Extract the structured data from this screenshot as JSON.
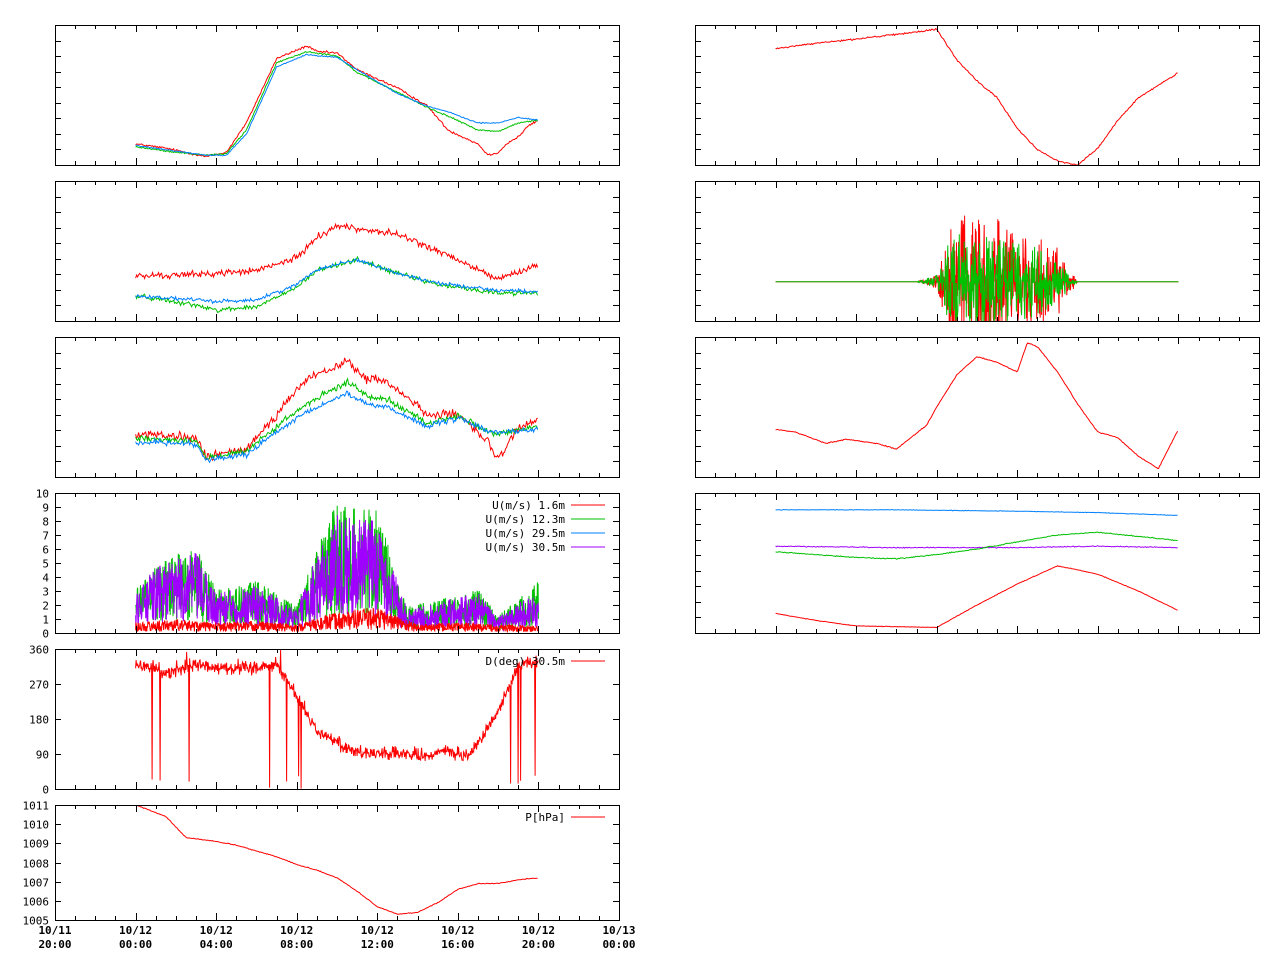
{
  "colors": {
    "red": "#ff0000",
    "green": "#00c000",
    "blue": "#0080ff",
    "purple": "#a000ff",
    "axis": "#000000",
    "background": "#ffffff"
  },
  "time_axis": {
    "start": "10/11 20:00",
    "end": "10/13 00:00",
    "major_every_hours": 4,
    "minor_every_hours": 1,
    "tick_labels": [
      {
        "date": "10/11",
        "time": "20:00"
      },
      {
        "date": "10/12",
        "time": "00:00"
      },
      {
        "date": "10/12",
        "time": "04:00"
      },
      {
        "date": "10/12",
        "time": "08:00"
      },
      {
        "date": "10/12",
        "time": "12:00"
      },
      {
        "date": "10/12",
        "time": "16:00"
      },
      {
        "date": "10/12",
        "time": "20:00"
      },
      {
        "date": "10/13",
        "time": "00:00"
      }
    ]
  },
  "chart_data": [
    {
      "id": "left-1",
      "type": "line",
      "x_range_hours": [
        0,
        28
      ],
      "ylim": [
        0,
        10
      ],
      "grid": false,
      "y_ticks": [],
      "legend": [],
      "series": [
        {
          "color": "red",
          "noise": 0.12,
          "x": [
            4,
            5.5,
            7.5,
            8.5,
            9.5,
            11,
            12.5,
            13,
            14,
            15,
            17,
            18.5,
            19.5,
            21,
            21.5,
            22,
            22.5,
            23,
            23.5,
            24
          ],
          "y": [
            1.5,
            1.2,
            0.6,
            0.9,
            3,
            7.6,
            8.5,
            8.1,
            8,
            6.8,
            5.5,
            4.2,
            2.5,
            1.5,
            0.7,
            0.9,
            1.6,
            2,
            2.8,
            3.2
          ]
        },
        {
          "color": "green",
          "noise": 0.08,
          "x": [
            4,
            5.5,
            7.5,
            8.5,
            9.5,
            11,
            12.5,
            13,
            14,
            15,
            17,
            18.5,
            19.5,
            21,
            22,
            23,
            24
          ],
          "y": [
            1.3,
            1,
            0.7,
            0.8,
            2.5,
            7.3,
            8.1,
            8,
            7.8,
            6.6,
            5.2,
            4.1,
            3.5,
            2.5,
            2.4,
            3,
            3.2
          ]
        },
        {
          "color": "blue",
          "noise": 0.06,
          "x": [
            4,
            5.5,
            7.5,
            8.5,
            9.5,
            11,
            12.5,
            13,
            14,
            15,
            17,
            18.5,
            19.5,
            21,
            22,
            23,
            24
          ],
          "y": [
            1.4,
            1.1,
            0.7,
            0.7,
            2.2,
            7,
            7.9,
            7.8,
            7.7,
            6.8,
            5.1,
            4.2,
            3.8,
            3,
            3,
            3.4,
            3.2
          ]
        }
      ]
    },
    {
      "id": "left-2",
      "type": "line",
      "x_range_hours": [
        0,
        28
      ],
      "ylim": [
        0,
        10
      ],
      "grid": false,
      "y_ticks": [],
      "legend": [],
      "series": [
        {
          "color": "red",
          "noise": 0.35,
          "x": [
            4,
            6.5,
            8,
            10,
            12,
            13,
            14,
            15,
            17,
            19,
            20.5,
            22,
            23,
            24
          ],
          "y": [
            3.2,
            3.3,
            3.4,
            3.6,
            4.5,
            6,
            6.8,
            6.6,
            6.2,
            5,
            4,
            3,
            3.5,
            4
          ]
        },
        {
          "color": "green",
          "noise": 0.25,
          "x": [
            4,
            6,
            8,
            10,
            12,
            13,
            15,
            17,
            19,
            22,
            24
          ],
          "y": [
            1.8,
            1.4,
            0.8,
            1,
            2.4,
            3.6,
            4.4,
            3.4,
            2.6,
            2,
            2
          ]
        },
        {
          "color": "blue",
          "noise": 0.2,
          "x": [
            4,
            6,
            8,
            10,
            12,
            13,
            15,
            17,
            19,
            22,
            24
          ],
          "y": [
            1.8,
            1.6,
            1.4,
            1.5,
            2.6,
            3.7,
            4.4,
            3.4,
            2.7,
            2.2,
            2.1
          ]
        }
      ]
    },
    {
      "id": "left-3",
      "type": "line",
      "x_range_hours": [
        0,
        28
      ],
      "ylim": [
        0,
        10
      ],
      "grid": false,
      "y_ticks": [],
      "legend": [],
      "series": [
        {
          "color": "red",
          "noise": 0.5,
          "x": [
            4,
            7,
            7.5,
            9.5,
            11,
            12.5,
            14.5,
            15.5,
            16.5,
            18.5,
            20,
            21.5,
            22,
            23,
            24
          ],
          "y": [
            3,
            2.8,
            1.4,
            2,
            4.5,
            7,
            8.2,
            7,
            6.8,
            4.5,
            4.4,
            2.5,
            1.2,
            3.5,
            4
          ]
        },
        {
          "color": "green",
          "noise": 0.35,
          "x": [
            4,
            7,
            7.5,
            9.5,
            11,
            12.5,
            14.5,
            15.5,
            16.5,
            18.5,
            20,
            21.5,
            22,
            23,
            24
          ],
          "y": [
            2.8,
            2.6,
            1.4,
            1.8,
            3.6,
            5.2,
            6.8,
            5.8,
            5.6,
            3.8,
            4.4,
            3.2,
            3,
            3.4,
            3.6
          ]
        },
        {
          "color": "blue",
          "noise": 0.3,
          "x": [
            4,
            7,
            7.5,
            9.5,
            11,
            12.5,
            14.5,
            15.5,
            16.5,
            18.5,
            20,
            21.5,
            22,
            24
          ],
          "y": [
            2.5,
            2.4,
            1.2,
            1.6,
            3.2,
            4.6,
            6,
            5.2,
            5,
            3.6,
            4.2,
            3.3,
            3.2,
            3.4
          ]
        }
      ]
    },
    {
      "id": "left-4",
      "type": "line",
      "x_range_hours": [
        0,
        28
      ],
      "ylim": [
        0,
        10
      ],
      "grid": false,
      "y_ticks": [
        "0",
        "1",
        "2",
        "3",
        "4",
        "5",
        "6",
        "7",
        "8",
        "9",
        "10"
      ],
      "legend": [
        {
          "label": "U(m/s)  1.6m",
          "color": "red"
        },
        {
          "label": "U(m/s) 12.3m",
          "color": "green"
        },
        {
          "label": "U(m/s) 29.5m",
          "color": "blue"
        },
        {
          "label": "U(m/s) 30.5m",
          "color": "purple"
        }
      ],
      "series": [
        {
          "color": "green",
          "style": "spiky",
          "x": [
            4,
            5,
            7,
            8,
            10,
            12,
            13,
            14,
            16,
            17.5,
            19,
            21,
            22,
            24
          ],
          "y": [
            2.5,
            4,
            5,
            2.5,
            3,
            1.5,
            5,
            7.5,
            7,
            1.5,
            2,
            2.5,
            1,
            3
          ]
        },
        {
          "color": "purple",
          "style": "spiky",
          "x": [
            4,
            5,
            7,
            8,
            10,
            12,
            13,
            14,
            16,
            17.5,
            19,
            21,
            22,
            24
          ],
          "y": [
            2.2,
            3.8,
            4.6,
            2.3,
            2.8,
            1.3,
            4.6,
            6.8,
            6.5,
            1.3,
            1.8,
            2.3,
            0.9,
            2.5
          ]
        },
        {
          "color": "red",
          "style": "spiky",
          "x": [
            4,
            6,
            8,
            10,
            12,
            14,
            16,
            18,
            20,
            24
          ],
          "y": [
            0.6,
            0.8,
            0.6,
            0.7,
            0.5,
            1.2,
            1.5,
            0.5,
            0.6,
            0.4
          ]
        }
      ]
    },
    {
      "id": "left-5",
      "type": "line",
      "x_range_hours": [
        0,
        28
      ],
      "ylim": [
        0,
        360
      ],
      "grid": false,
      "y_ticks": [
        "0",
        "90",
        "180",
        "270",
        "360"
      ],
      "legend": [
        {
          "label": "D(deg)  30.5m",
          "color": "red"
        }
      ],
      "series": [
        {
          "color": "red",
          "style": "direction",
          "x": [
            4,
            5.5,
            7,
            9,
            11,
            12,
            13,
            14,
            15,
            17,
            18.5,
            19.5,
            20.5,
            22,
            23,
            24
          ],
          "y": [
            320,
            300,
            320,
            310,
            320,
            240,
            150,
            120,
            95,
            90,
            85,
            100,
            80,
            200,
            320,
            330
          ]
        }
      ]
    },
    {
      "id": "left-6",
      "type": "line",
      "x_range_hours": [
        0,
        28
      ],
      "ylim": [
        1005,
        1011
      ],
      "grid": false,
      "y_ticks": [
        "1005",
        "1006",
        "1007",
        "1008",
        "1009",
        "1010",
        "1011"
      ],
      "legend": [
        {
          "label": "P[hPa]",
          "color": "red"
        }
      ],
      "series": [
        {
          "color": "red",
          "noise": 0.05,
          "x": [
            4,
            5.5,
            6.5,
            8,
            9,
            10,
            11,
            12,
            13,
            14,
            15,
            16,
            17,
            18,
            19,
            20,
            21,
            22,
            23,
            24
          ],
          "y": [
            1011,
            1010.4,
            1009.3,
            1009.1,
            1008.9,
            1008.6,
            1008.3,
            1007.9,
            1007.6,
            1007.2,
            1006.5,
            1005.7,
            1005.3,
            1005.4,
            1005.9,
            1006.6,
            1006.9,
            1006.9,
            1007.1,
            1007.2
          ]
        }
      ]
    },
    {
      "id": "right-1",
      "type": "line",
      "x_range_hours": [
        0,
        28
      ],
      "ylim": [
        0,
        10
      ],
      "grid": false,
      "y_ticks": [],
      "legend": [],
      "series": [
        {
          "color": "red",
          "noise": 0.08,
          "x": [
            4,
            6,
            8,
            11,
            12,
            13,
            14,
            15,
            16,
            17,
            18,
            19,
            20,
            21,
            22,
            24
          ],
          "y": [
            8.3,
            8.7,
            9,
            9.5,
            9.7,
            7.5,
            6,
            4.8,
            2.6,
            1.1,
            0.3,
            0,
            1.2,
            3.2,
            4.8,
            6.6
          ]
        }
      ]
    },
    {
      "id": "right-2",
      "type": "line",
      "x_range_hours": [
        0,
        28
      ],
      "ylim": [
        0,
        10
      ],
      "grid": false,
      "y_ticks": [],
      "legend": [],
      "series": [
        {
          "color": "red",
          "style": "spiky",
          "base": 2.8,
          "x": [
            4,
            11,
            12,
            12.5,
            13,
            14,
            15,
            16,
            17,
            18,
            19,
            20,
            24
          ],
          "y": [
            0,
            0,
            0.5,
            3,
            5,
            4.5,
            4.6,
            3.5,
            3.2,
            2.5,
            0,
            0,
            0
          ]
        },
        {
          "color": "green",
          "style": "spiky",
          "base": 2.8,
          "x": [
            4,
            11,
            12,
            12.5,
            13,
            14,
            15,
            16,
            17,
            18,
            19,
            20,
            24
          ],
          "y": [
            0,
            0,
            0.5,
            2.5,
            3.8,
            3.5,
            3,
            2.8,
            2.5,
            1.5,
            0,
            0,
            0
          ]
        }
      ]
    },
    {
      "id": "right-3",
      "type": "line",
      "x_range_hours": [
        0,
        28
      ],
      "ylim": [
        0,
        10
      ],
      "grid": false,
      "y_ticks": [],
      "legend": [],
      "series": [
        {
          "color": "red",
          "noise": 0.05,
          "x": [
            4,
            5,
            6.5,
            7.5,
            9,
            10,
            11.5,
            12,
            13,
            14,
            15,
            16,
            16.5,
            17,
            18,
            19,
            20,
            21,
            22,
            23,
            24
          ],
          "y": [
            3.4,
            3.2,
            2.4,
            2.7,
            2.4,
            2,
            3.7,
            5,
            7.3,
            8.6,
            8.2,
            7.5,
            9.6,
            9.3,
            7.5,
            5.2,
            3.2,
            2.8,
            1.5,
            0.6,
            3.4
          ]
        }
      ]
    },
    {
      "id": "right-4",
      "type": "line",
      "x_range_hours": [
        0,
        28
      ],
      "ylim": [
        0,
        10
      ],
      "grid": false,
      "y_ticks": [],
      "legend": [],
      "series": [
        {
          "color": "blue",
          "noise": 0.03,
          "x": [
            4,
            10,
            16,
            20,
            24
          ],
          "y": [
            8.8,
            8.8,
            8.7,
            8.6,
            8.4
          ]
        },
        {
          "color": "purple",
          "noise": 0.05,
          "x": [
            4,
            10,
            16,
            20,
            24
          ],
          "y": [
            6.2,
            6.1,
            6.1,
            6.2,
            6.1
          ]
        },
        {
          "color": "green",
          "noise": 0.05,
          "x": [
            4,
            6,
            8,
            10,
            12,
            14,
            16,
            18,
            20,
            22,
            24
          ],
          "y": [
            5.8,
            5.6,
            5.4,
            5.3,
            5.6,
            6,
            6.5,
            7,
            7.2,
            6.9,
            6.6
          ]
        },
        {
          "color": "red",
          "noise": 0.03,
          "x": [
            4,
            6,
            8,
            12,
            14,
            16,
            18,
            20,
            22,
            24
          ],
          "y": [
            1.4,
            0.9,
            0.5,
            0.4,
            2,
            3.5,
            4.8,
            4.2,
            3,
            1.6
          ]
        }
      ]
    }
  ]
}
